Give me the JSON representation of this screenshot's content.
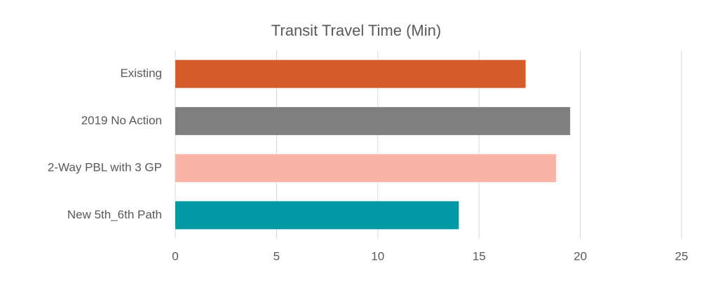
{
  "chart_data": {
    "type": "bar",
    "orientation": "horizontal",
    "title": "Transit Travel Time (Min)",
    "categories": [
      "Existing",
      "2019 No Action",
      "2-Way PBL with 3 GP",
      "New 5th_6th Path"
    ],
    "values": [
      17.3,
      19.5,
      18.8,
      14.0
    ],
    "colors": [
      "#d55b2b",
      "#7f7f7f",
      "#f8b5a5",
      "#0099a4"
    ],
    "xlim": [
      0,
      25
    ],
    "xticks": [
      0,
      5,
      10,
      15,
      20,
      25
    ],
    "grid": true
  }
}
